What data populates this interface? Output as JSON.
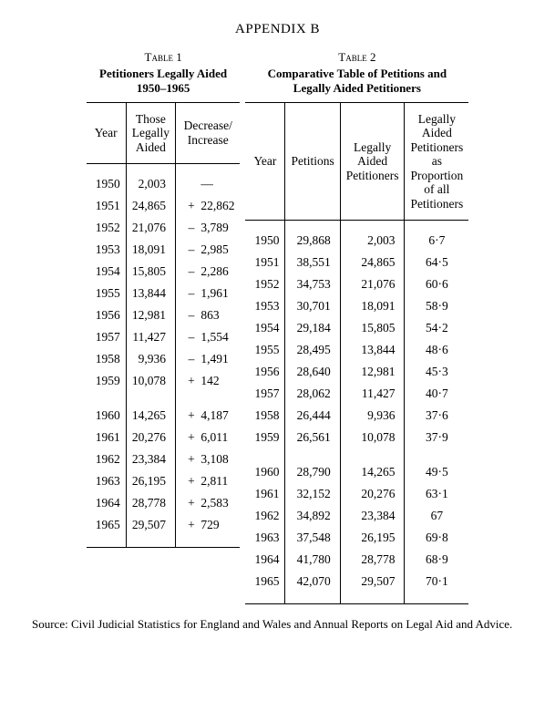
{
  "appendix_title": "APPENDIX B",
  "table1": {
    "label": "Table 1",
    "title_l1": "Petitioners Legally Aided",
    "title_l2": "1950–1965",
    "headers": {
      "year": "Year",
      "aided_l1": "Those",
      "aided_l2": "Legally",
      "aided_l3": "Aided",
      "diff_l1": "Decrease/",
      "diff_l2": "Increase"
    },
    "rows": [
      {
        "year": "1950",
        "aided": "2,003",
        "sign": "",
        "diff": "—"
      },
      {
        "year": "1951",
        "aided": "24,865",
        "sign": "+",
        "diff": "22,862"
      },
      {
        "year": "1952",
        "aided": "21,076",
        "sign": "–",
        "diff": "3,789"
      },
      {
        "year": "1953",
        "aided": "18,091",
        "sign": "–",
        "diff": "2,985"
      },
      {
        "year": "1954",
        "aided": "15,805",
        "sign": "–",
        "diff": "2,286"
      },
      {
        "year": "1955",
        "aided": "13,844",
        "sign": "–",
        "diff": "1,961"
      },
      {
        "year": "1956",
        "aided": "12,981",
        "sign": "–",
        "diff": "863"
      },
      {
        "year": "1957",
        "aided": "11,427",
        "sign": "–",
        "diff": "1,554"
      },
      {
        "year": "1958",
        "aided": "9,936",
        "sign": "–",
        "diff": "1,491"
      },
      {
        "year": "1959",
        "aided": "10,078",
        "sign": "+",
        "diff": "142"
      },
      {
        "year": "1960",
        "aided": "14,265",
        "sign": "+",
        "diff": "4,187"
      },
      {
        "year": "1961",
        "aided": "20,276",
        "sign": "+",
        "diff": "6,011"
      },
      {
        "year": "1962",
        "aided": "23,384",
        "sign": "+",
        "diff": "3,108"
      },
      {
        "year": "1963",
        "aided": "26,195",
        "sign": "+",
        "diff": "2,811"
      },
      {
        "year": "1964",
        "aided": "28,778",
        "sign": "+",
        "diff": "2,583"
      },
      {
        "year": "1965",
        "aided": "29,507",
        "sign": "+",
        "diff": "729"
      }
    ]
  },
  "table2": {
    "label": "Table 2",
    "title_l1": "Comparative Table of Petitions and",
    "title_l2": "Legally Aided Petitioners",
    "headers": {
      "year": "Year",
      "petitions": "Petitions",
      "aided_l1": "Legally",
      "aided_l2": "Aided",
      "aided_l3": "Petitioners",
      "prop_l1": "Legally",
      "prop_l2": "Aided",
      "prop_l3": "Petitioners",
      "prop_l4": "as",
      "prop_l5": "Proportion",
      "prop_l6": "of all",
      "prop_l7": "Petitioners"
    },
    "rows": [
      {
        "year": "1950",
        "petitions": "29,868",
        "aided": "2,003",
        "prop": "6·7"
      },
      {
        "year": "1951",
        "petitions": "38,551",
        "aided": "24,865",
        "prop": "64·5"
      },
      {
        "year": "1952",
        "petitions": "34,753",
        "aided": "21,076",
        "prop": "60·6"
      },
      {
        "year": "1953",
        "petitions": "30,701",
        "aided": "18,091",
        "prop": "58·9"
      },
      {
        "year": "1954",
        "petitions": "29,184",
        "aided": "15,805",
        "prop": "54·2"
      },
      {
        "year": "1955",
        "petitions": "28,495",
        "aided": "13,844",
        "prop": "48·6"
      },
      {
        "year": "1956",
        "petitions": "28,640",
        "aided": "12,981",
        "prop": "45·3"
      },
      {
        "year": "1957",
        "petitions": "28,062",
        "aided": "11,427",
        "prop": "40·7"
      },
      {
        "year": "1958",
        "petitions": "26,444",
        "aided": "9,936",
        "prop": "37·6"
      },
      {
        "year": "1959",
        "petitions": "26,561",
        "aided": "10,078",
        "prop": "37·9"
      },
      {
        "year": "1960",
        "petitions": "28,790",
        "aided": "14,265",
        "prop": "49·5"
      },
      {
        "year": "1961",
        "petitions": "32,152",
        "aided": "20,276",
        "prop": "63·1"
      },
      {
        "year": "1962",
        "petitions": "34,892",
        "aided": "23,384",
        "prop": "67"
      },
      {
        "year": "1963",
        "petitions": "37,548",
        "aided": "26,195",
        "prop": "69·8"
      },
      {
        "year": "1964",
        "petitions": "41,780",
        "aided": "28,778",
        "prop": "68·9"
      },
      {
        "year": "1965",
        "petitions": "42,070",
        "aided": "29,507",
        "prop": "70·1"
      }
    ]
  },
  "source": "Source: Civil Judicial Statistics for England and Wales and Annual Reports on Legal Aid and Advice."
}
